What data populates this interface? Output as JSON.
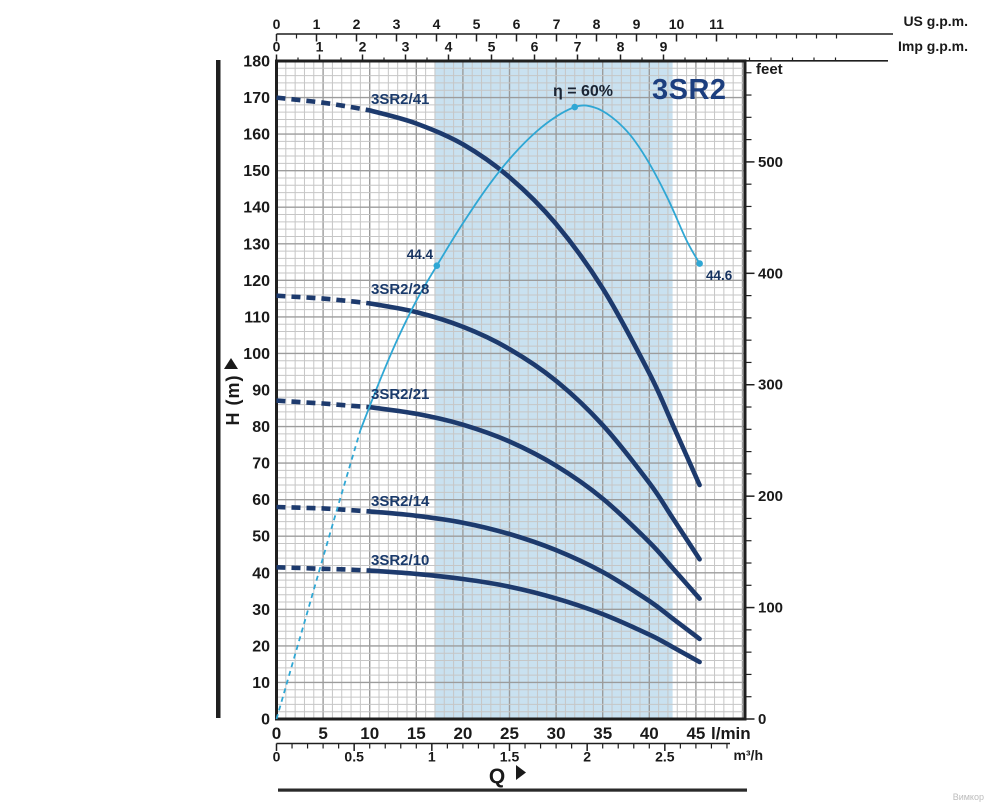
{
  "watermark": "Вимкор",
  "title": "3SR2",
  "q_label": "Q",
  "axes": {
    "us_gpm": {
      "unit": "US g.p.m.",
      "ticks": [
        "0",
        "1",
        "2",
        "3",
        "4",
        "5",
        "6",
        "7",
        "8",
        "9",
        "10",
        "11"
      ]
    },
    "imp_gpm": {
      "unit": "Imp g.p.m.",
      "ticks": [
        "0",
        "1",
        "2",
        "3",
        "4",
        "5",
        "6",
        "7",
        "8",
        "9"
      ]
    },
    "h_m": {
      "unit": "H (m)",
      "ticks": [
        "0",
        "10",
        "20",
        "30",
        "40",
        "50",
        "60",
        "70",
        "80",
        "90",
        "100",
        "110",
        "120",
        "130",
        "140",
        "150",
        "160",
        "170",
        "180"
      ]
    },
    "feet": {
      "unit": "feet",
      "ticks": [
        "0",
        "100",
        "200",
        "300",
        "400",
        "500"
      ]
    },
    "lmin": {
      "unit": "l/min",
      "ticks": [
        "0",
        "5",
        "10",
        "15",
        "20",
        "25",
        "30",
        "35",
        "40",
        "45"
      ]
    },
    "m3h": {
      "unit": "m³/h",
      "ticks": [
        "0",
        "0.5",
        "1",
        "1.5",
        "2",
        "2.5"
      ]
    }
  },
  "colors": {
    "curve": "#1d3a6d",
    "efficiency": "#2fa7d4",
    "band": "#c9e1f0",
    "grid_minor": "#c6c6c6",
    "grid_major": "#9c9c9c",
    "axis": "#1f1f1f",
    "title": "#1c3e7e"
  },
  "chart_data": {
    "type": "line",
    "title": "3SR2",
    "xlabel": "Q",
    "ylabel": "H (m)",
    "x_unit": "l/min",
    "xlim": [
      0,
      50.3
    ],
    "ylim": [
      0,
      180
    ],
    "grid": "on",
    "duty_band_lmin": [
      17,
      42.5
    ],
    "dashed_until_q": 10,
    "q": [
      0,
      2.5,
      5,
      7.5,
      10,
      15,
      20,
      25,
      30,
      35,
      40,
      42.5,
      45.4
    ],
    "series": [
      {
        "name": "3SR2/41",
        "h": [
          170.0,
          169.3,
          168.6,
          167.6,
          166.5,
          162.9,
          157.2,
          148.2,
          135.4,
          117.8,
          94.6,
          80.6,
          64.0
        ]
      },
      {
        "name": "3SR2/28",
        "h": [
          115.8,
          115.4,
          115.0,
          114.4,
          113.7,
          111.3,
          107.3,
          101.2,
          92.5,
          80.4,
          64.6,
          55.0,
          43.7
        ]
      },
      {
        "name": "3SR2/21",
        "h": [
          87.1,
          86.7,
          86.3,
          85.8,
          85.3,
          83.5,
          80.5,
          75.9,
          69.3,
          60.3,
          48.4,
          41.3,
          32.9
        ]
      },
      {
        "name": "3SR2/14",
        "h": [
          58.0,
          57.8,
          57.6,
          57.2,
          56.8,
          55.6,
          53.7,
          50.6,
          46.2,
          40.2,
          32.3,
          27.5,
          21.9
        ]
      },
      {
        "name": "3SR2/10",
        "h": [
          41.5,
          41.3,
          41.1,
          40.9,
          40.6,
          39.7,
          38.3,
          36.2,
          33.0,
          28.7,
          23.1,
          19.7,
          15.6
        ]
      }
    ],
    "efficiency": {
      "name": "η",
      "scale_note": "η plotted on H axis, 60% = 167.4 m",
      "dashed_points": [
        [
          0,
          0
        ],
        [
          3,
          26.5
        ],
        [
          6,
          53
        ],
        [
          9,
          79
        ]
      ],
      "solid_points": [
        [
          9,
          79
        ],
        [
          11,
          92
        ],
        [
          13,
          104
        ],
        [
          15,
          114.4
        ],
        [
          17.2,
          124
        ],
        [
          20,
          135.6
        ],
        [
          23,
          146.8
        ],
        [
          26,
          156
        ],
        [
          29,
          163
        ],
        [
          32,
          167.4
        ],
        [
          34,
          167.4
        ],
        [
          36,
          164.6
        ],
        [
          38,
          159.6
        ],
        [
          40,
          152
        ],
        [
          42,
          142.3
        ],
        [
          44,
          130.9
        ],
        [
          45.4,
          124.6
        ]
      ],
      "markers": [
        {
          "q": 17.2,
          "h": 124,
          "label": "44.4"
        },
        {
          "q": 32,
          "h": 167.4,
          "label": "η = 60%"
        },
        {
          "q": 45.4,
          "h": 124.6,
          "label": "44.6"
        }
      ]
    }
  }
}
